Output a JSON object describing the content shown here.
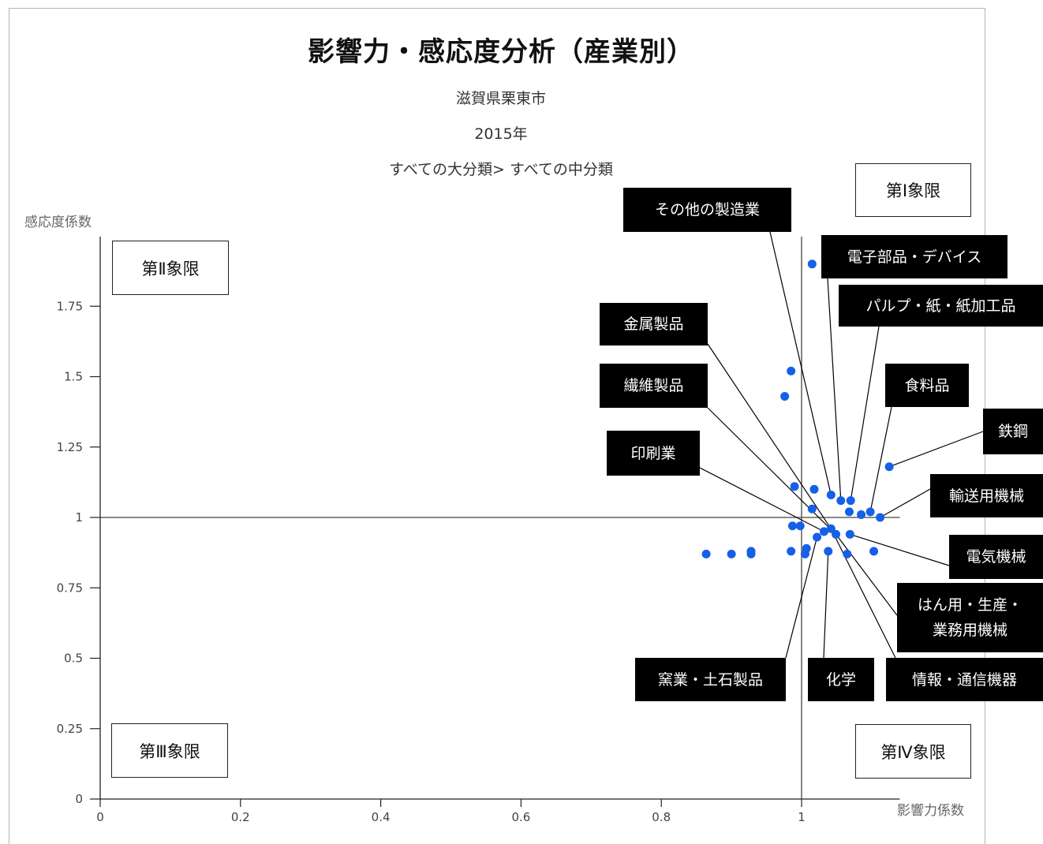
{
  "chart_data": {
    "type": "scatter",
    "title": "影響力・感応度分析（産業別）",
    "subtitle_lines": [
      "滋賀県栗東市",
      "2015年",
      "すべての大分類> すべての中分類"
    ],
    "xlabel": "影響力係数",
    "ylabel": "感応度係数",
    "xlim": [
      0,
      1.14
    ],
    "ylim": [
      0,
      2.0
    ],
    "x_ticks": [
      "0",
      "0.2",
      "0.4",
      "0.6",
      "0.8",
      "1"
    ],
    "y_ticks": [
      "0",
      "0.25",
      "0.5",
      "0.75",
      "1",
      "1.25",
      "1.5",
      "1.75"
    ],
    "reference_lines": {
      "x": 1,
      "y": 1
    },
    "quadrants": [
      "第Ⅰ象限",
      "第Ⅱ象限",
      "第Ⅲ象限",
      "第Ⅳ象限"
    ],
    "marker_color": "#1560e6",
    "points": [
      {
        "x": 1.015,
        "y": 1.9
      },
      {
        "x": 0.985,
        "y": 1.52
      },
      {
        "x": 0.976,
        "y": 1.43
      },
      {
        "x": 1.125,
        "y": 1.18
      },
      {
        "x": 0.99,
        "y": 1.11
      },
      {
        "x": 1.018,
        "y": 1.1
      },
      {
        "x": 1.042,
        "y": 1.08
      },
      {
        "x": 1.056,
        "y": 1.06
      },
      {
        "x": 1.07,
        "y": 1.06
      },
      {
        "x": 1.015,
        "y": 1.03
      },
      {
        "x": 1.068,
        "y": 1.02
      },
      {
        "x": 1.085,
        "y": 1.01
      },
      {
        "x": 1.098,
        "y": 1.02
      },
      {
        "x": 1.112,
        "y": 1.0
      },
      {
        "x": 0.987,
        "y": 0.97
      },
      {
        "x": 0.998,
        "y": 0.97
      },
      {
        "x": 1.042,
        "y": 0.96
      },
      {
        "x": 1.032,
        "y": 0.95
      },
      {
        "x": 1.022,
        "y": 0.93
      },
      {
        "x": 1.049,
        "y": 0.94
      },
      {
        "x": 1.069,
        "y": 0.94
      },
      {
        "x": 1.007,
        "y": 0.89
      },
      {
        "x": 0.985,
        "y": 0.88
      },
      {
        "x": 1.038,
        "y": 0.88
      },
      {
        "x": 1.103,
        "y": 0.88
      },
      {
        "x": 1.005,
        "y": 0.87
      },
      {
        "x": 1.065,
        "y": 0.87
      },
      {
        "x": 0.864,
        "y": 0.87
      },
      {
        "x": 0.9,
        "y": 0.87
      },
      {
        "x": 0.928,
        "y": 0.87
      },
      {
        "x": 0.928,
        "y": 0.88
      }
    ],
    "annotations": [
      {
        "label": "その他の製造業",
        "target": {
          "x": 1.042,
          "y": 1.08
        }
      },
      {
        "label": "電子部品・デバイス",
        "target": {
          "x": 1.056,
          "y": 1.06
        }
      },
      {
        "label": "パルプ・紙・紙加工品",
        "target": {
          "x": 1.07,
          "y": 1.06
        }
      },
      {
        "label": "金属製品",
        "target": {
          "x": 1.042,
          "y": 0.96
        }
      },
      {
        "label": "食料品",
        "target": {
          "x": 1.098,
          "y": 1.02
        }
      },
      {
        "label": "繊維製品",
        "target": {
          "x": 1.049,
          "y": 0.94
        }
      },
      {
        "label": "鉄鋼",
        "target": {
          "x": 1.125,
          "y": 1.18
        }
      },
      {
        "label": "印刷業",
        "target": {
          "x": 1.032,
          "y": 0.95
        }
      },
      {
        "label": "輸送用機械",
        "target": {
          "x": 1.112,
          "y": 1.0
        }
      },
      {
        "label": "電気機械",
        "target": {
          "x": 1.069,
          "y": 0.94
        }
      },
      {
        "label": "はん用・生産・\n業務用機械",
        "target": {
          "x": 1.049,
          "y": 0.94
        }
      },
      {
        "label": "窯業・土石製品",
        "target": {
          "x": 1.022,
          "y": 0.93
        }
      },
      {
        "label": "化学",
        "target": {
          "x": 1.038,
          "y": 0.88
        }
      },
      {
        "label": "情報・通信機器",
        "target": {
          "x": 1.042,
          "y": 0.96
        }
      }
    ]
  }
}
